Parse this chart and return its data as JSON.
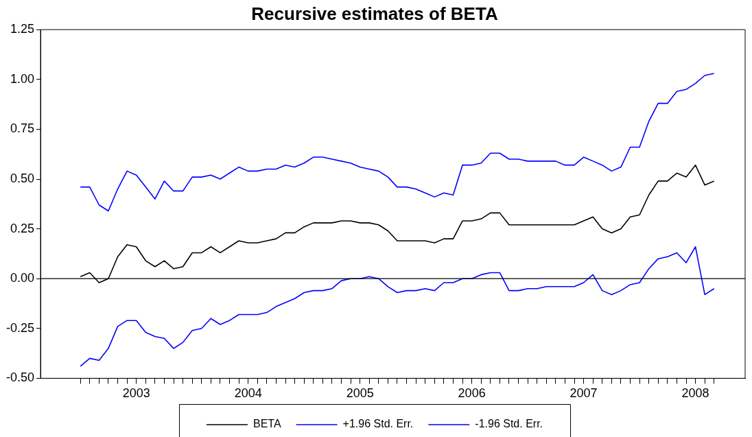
{
  "chart_data": {
    "type": "line",
    "title": "Recursive estimates of BETA",
    "categories": [
      null,
      null,
      null,
      null,
      null,
      null,
      "2003",
      null,
      null,
      null,
      null,
      null,
      null,
      null,
      null,
      null,
      null,
      null,
      "2004",
      null,
      null,
      null,
      null,
      null,
      null,
      null,
      null,
      null,
      null,
      null,
      "2005",
      null,
      null,
      null,
      null,
      null,
      null,
      null,
      null,
      null,
      null,
      null,
      "2006",
      null,
      null,
      null,
      null,
      null,
      null,
      null,
      null,
      null,
      null,
      null,
      "2007",
      null,
      null,
      null,
      null,
      null,
      null,
      null,
      null,
      null,
      null,
      null,
      "2008",
      null,
      null
    ],
    "series": [
      {
        "name": "BETA",
        "color": "#000000",
        "values": [
          0.01,
          0.03,
          -0.02,
          0.0,
          0.11,
          0.17,
          0.16,
          0.09,
          0.06,
          0.09,
          0.05,
          0.06,
          0.13,
          0.13,
          0.16,
          0.13,
          0.16,
          0.19,
          0.18,
          0.18,
          0.19,
          0.2,
          0.23,
          0.23,
          0.26,
          0.28,
          0.28,
          0.28,
          0.29,
          0.29,
          0.28,
          0.28,
          0.27,
          0.24,
          0.19,
          0.19,
          0.19,
          0.19,
          0.18,
          0.2,
          0.2,
          0.29,
          0.29,
          0.3,
          0.33,
          0.33,
          0.27,
          0.27,
          0.27,
          0.27,
          0.27,
          0.27,
          0.27,
          0.27,
          0.29,
          0.31,
          0.25,
          0.23,
          0.25,
          0.31,
          0.32,
          0.42,
          0.49,
          0.49,
          0.53,
          0.51,
          0.57,
          0.47,
          0.49
        ]
      },
      {
        "name": "+1.96 Std. Err.",
        "color": "#0000ff",
        "values": [
          0.46,
          0.46,
          0.37,
          0.34,
          0.45,
          0.54,
          0.52,
          0.46,
          0.4,
          0.49,
          0.44,
          0.44,
          0.51,
          0.51,
          0.52,
          0.5,
          0.53,
          0.56,
          0.54,
          0.54,
          0.55,
          0.55,
          0.57,
          0.56,
          0.58,
          0.61,
          0.61,
          0.6,
          0.59,
          0.58,
          0.56,
          0.55,
          0.54,
          0.51,
          0.46,
          0.46,
          0.45,
          0.43,
          0.41,
          0.43,
          0.42,
          0.57,
          0.57,
          0.58,
          0.63,
          0.63,
          0.6,
          0.6,
          0.59,
          0.59,
          0.59,
          0.59,
          0.57,
          0.57,
          0.61,
          0.59,
          0.57,
          0.54,
          0.56,
          0.66,
          0.66,
          0.79,
          0.88,
          0.88,
          0.94,
          0.95,
          0.98,
          1.02,
          1.03
        ]
      },
      {
        "name": "-1.96 Std. Err.",
        "color": "#0000ff",
        "values": [
          -0.44,
          -0.4,
          -0.41,
          -0.35,
          -0.24,
          -0.21,
          -0.21,
          -0.27,
          -0.29,
          -0.3,
          -0.35,
          -0.32,
          -0.26,
          -0.25,
          -0.2,
          -0.23,
          -0.21,
          -0.18,
          -0.18,
          -0.18,
          -0.17,
          -0.14,
          -0.12,
          -0.1,
          -0.07,
          -0.06,
          -0.06,
          -0.05,
          -0.01,
          0.0,
          0.0,
          0.01,
          0.0,
          -0.04,
          -0.07,
          -0.06,
          -0.06,
          -0.05,
          -0.06,
          -0.02,
          -0.02,
          0.0,
          0.0,
          0.02,
          0.03,
          0.03,
          -0.06,
          -0.06,
          -0.05,
          -0.05,
          -0.04,
          -0.04,
          -0.04,
          -0.04,
          -0.02,
          0.02,
          -0.06,
          -0.08,
          -0.06,
          -0.03,
          -0.02,
          0.05,
          0.1,
          0.11,
          0.13,
          0.08,
          0.16,
          -0.08,
          -0.05
        ]
      }
    ],
    "ylim": [
      -0.5,
      1.25
    ],
    "yticks": [
      {
        "value": -0.5,
        "label": "-0.50"
      },
      {
        "value": -0.25,
        "label": "-0.25"
      },
      {
        "value": 0,
        "label": "0.00"
      },
      {
        "value": 0.25,
        "label": "0.25"
      },
      {
        "value": 0.5,
        "label": "0.50"
      },
      {
        "value": 0.75,
        "label": "0.75"
      },
      {
        "value": 1,
        "label": "1.00"
      },
      {
        "value": 1.25,
        "label": "1.25"
      }
    ],
    "ref_lines": [
      {
        "axis": "y",
        "value": 0,
        "color": "#000000"
      }
    ],
    "legend": "bottom",
    "marker": "none",
    "line_style": "solid"
  }
}
